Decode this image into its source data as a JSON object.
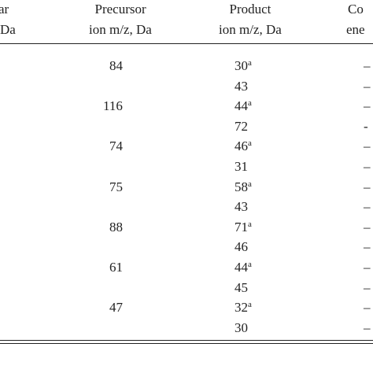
{
  "table": {
    "header": {
      "col0": [
        "ar",
        "Da"
      ],
      "col1": [
        "Precursor",
        "ion m/z, Da"
      ],
      "col2": [
        "Product",
        "ion m/z, Da"
      ],
      "col3": [
        "Co",
        "ene"
      ]
    },
    "rows": [
      {
        "precursor": "84",
        "products": [
          {
            "mz": "30",
            "note": "a",
            "cut": "–"
          },
          {
            "mz": "43",
            "cut": "–"
          }
        ]
      },
      {
        "precursor": "116",
        "products": [
          {
            "mz": "44",
            "note": "a",
            "cut": "–"
          },
          {
            "mz": "72",
            "cut": "-"
          }
        ]
      },
      {
        "precursor": "74",
        "products": [
          {
            "mz": "46",
            "note": "a",
            "cut": "–"
          },
          {
            "mz": "31",
            "cut": "–"
          }
        ]
      },
      {
        "precursor": "75",
        "products": [
          {
            "mz": "58",
            "note": "a",
            "cut": "–"
          },
          {
            "mz": "43",
            "cut": "–"
          }
        ]
      },
      {
        "precursor": "88",
        "products": [
          {
            "mz": "71",
            "note": "a",
            "cut": "–"
          },
          {
            "mz": "46",
            "cut": "–"
          }
        ]
      },
      {
        "precursor": "61",
        "products": [
          {
            "mz": "44",
            "note": "a",
            "cut": "–"
          },
          {
            "mz": "45",
            "cut": "–"
          }
        ]
      },
      {
        "precursor": "47",
        "products": [
          {
            "mz": "32",
            "note": "a",
            "cut": "–"
          },
          {
            "mz": "30",
            "cut": "–"
          }
        ]
      }
    ]
  }
}
